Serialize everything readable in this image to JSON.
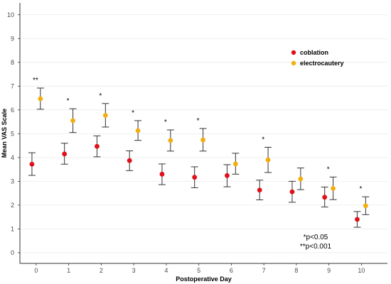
{
  "chart_data": {
    "type": "scatter",
    "title": "",
    "xlabel": "Postoperative Day",
    "ylabel": "Mean VAS Scale",
    "x": [
      0,
      1,
      2,
      3,
      4,
      5,
      6,
      7,
      8,
      9,
      10
    ],
    "x_tick_labels": [
      "0",
      "1",
      "2",
      "3",
      "4",
      "5",
      "6",
      "7",
      "8",
      "9",
      "10"
    ],
    "y_tick_labels": [
      "0",
      "1",
      "2",
      "3",
      "4",
      "5",
      "6",
      "7",
      "8",
      "9",
      "10"
    ],
    "xlim": [
      -0.5,
      10.8
    ],
    "ylim": [
      -0.45,
      10.5
    ],
    "grid": "horizontal",
    "legend_position": "top-right",
    "series": [
      {
        "name": "coblation",
        "color": "#e0101a",
        "y": [
          3.72,
          4.15,
          4.47,
          3.87,
          3.3,
          3.17,
          3.24,
          2.63,
          2.56,
          2.33,
          1.4
        ],
        "y_low": [
          3.25,
          3.72,
          4.03,
          3.45,
          2.86,
          2.73,
          2.77,
          2.22,
          2.12,
          1.92,
          1.07
        ],
        "y_high": [
          4.2,
          4.6,
          4.91,
          4.28,
          3.73,
          3.61,
          3.7,
          3.05,
          3.0,
          2.76,
          1.73
        ]
      },
      {
        "name": "electrocautery",
        "color": "#f2ae0f",
        "y": [
          6.47,
          5.55,
          5.77,
          5.13,
          4.72,
          4.74,
          3.73,
          3.9,
          3.1,
          2.7,
          1.97
        ],
        "y_low": [
          6.03,
          5.05,
          5.28,
          4.72,
          4.27,
          4.27,
          3.3,
          3.37,
          2.65,
          2.23,
          1.6
        ],
        "y_high": [
          6.92,
          6.05,
          6.27,
          5.55,
          5.16,
          5.22,
          4.18,
          4.43,
          3.56,
          3.18,
          2.35
        ]
      }
    ],
    "significance": [
      {
        "x": 0,
        "label": "**"
      },
      {
        "x": 1,
        "label": "*"
      },
      {
        "x": 2,
        "label": "*"
      },
      {
        "x": 3,
        "label": "*"
      },
      {
        "x": 4,
        "label": "*"
      },
      {
        "x": 5,
        "label": "*"
      },
      {
        "x": 7,
        "label": "*"
      },
      {
        "x": 9,
        "label": "*"
      },
      {
        "x": 10,
        "label": "*"
      }
    ],
    "notes": [
      "*p<0.05",
      "**p<0.001"
    ]
  }
}
